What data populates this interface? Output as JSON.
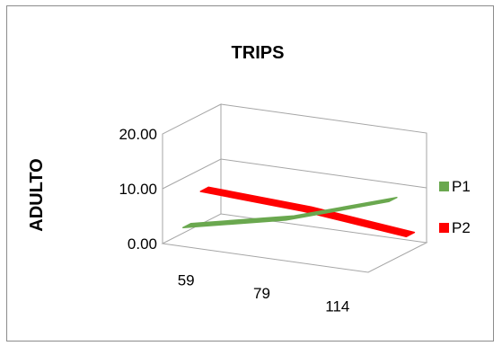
{
  "chart_data": {
    "type": "line",
    "variant": "3d",
    "title": "TRIPS",
    "xlabel": "",
    "ylabel": "ADULTO",
    "categories": [
      "59",
      "79",
      "114"
    ],
    "ylim": [
      0,
      20
    ],
    "y_ticks": [
      "0.00",
      "10.00",
      "20.00"
    ],
    "grid": true,
    "legend": "right",
    "series": [
      {
        "name": "P1",
        "values": [
          1,
          5,
          11
        ],
        "color": "#6aa84f"
      },
      {
        "name": "P2",
        "values": [
          6,
          5,
          3
        ],
        "color": "#ff0000"
      }
    ]
  }
}
